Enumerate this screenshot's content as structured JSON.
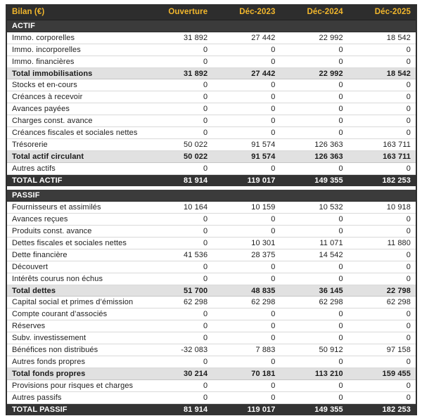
{
  "table": {
    "title": "Bilan (€)",
    "columns": [
      "Ouverture",
      "Déc-2023",
      "Déc-2024",
      "Déc-2025"
    ],
    "sections": [
      {
        "name": "ACTIF",
        "rows": [
          {
            "label": "Immo. corporelles",
            "values": [
              "31 892",
              "27 442",
              "22 992",
              "18 542"
            ],
            "style": "normal"
          },
          {
            "label": "Immo. incorporelles",
            "values": [
              "0",
              "0",
              "0",
              "0"
            ],
            "style": "normal"
          },
          {
            "label": "Immo. financières",
            "values": [
              "0",
              "0",
              "0",
              "0"
            ],
            "style": "normal"
          },
          {
            "label": "Total immobilisations",
            "values": [
              "31 892",
              "27 442",
              "22 992",
              "18 542"
            ],
            "style": "subtotal"
          },
          {
            "label": "Stocks et en-cours",
            "values": [
              "0",
              "0",
              "0",
              "0"
            ],
            "style": "normal"
          },
          {
            "label": "Créances à recevoir",
            "values": [
              "0",
              "0",
              "0",
              "0"
            ],
            "style": "normal"
          },
          {
            "label": "Avances payées",
            "values": [
              "0",
              "0",
              "0",
              "0"
            ],
            "style": "normal"
          },
          {
            "label": "Charges const. avance",
            "values": [
              "0",
              "0",
              "0",
              "0"
            ],
            "style": "normal"
          },
          {
            "label": "Créances fiscales et sociales nettes",
            "values": [
              "0",
              "0",
              "0",
              "0"
            ],
            "style": "normal"
          },
          {
            "label": "Trésorerie",
            "values": [
              "50 022",
              "91 574",
              "126 363",
              "163 711"
            ],
            "style": "normal"
          },
          {
            "label": "Total actif circulant",
            "values": [
              "50 022",
              "91 574",
              "126 363",
              "163 711"
            ],
            "style": "subtotal"
          },
          {
            "label": "Autres actifs",
            "values": [
              "0",
              "0",
              "0",
              "0"
            ],
            "style": "normal"
          },
          {
            "label": "TOTAL ACTIF",
            "values": [
              "81 914",
              "119 017",
              "149 355",
              "182 253"
            ],
            "style": "grand-total"
          }
        ]
      },
      {
        "name": "PASSIF",
        "rows": [
          {
            "label": "Fournisseurs et assimilés",
            "values": [
              "10 164",
              "10 159",
              "10 532",
              "10 918"
            ],
            "style": "normal"
          },
          {
            "label": "Avances reçues",
            "values": [
              "0",
              "0",
              "0",
              "0"
            ],
            "style": "normal"
          },
          {
            "label": "Produits const. avance",
            "values": [
              "0",
              "0",
              "0",
              "0"
            ],
            "style": "normal"
          },
          {
            "label": "Dettes fiscales et sociales nettes",
            "values": [
              "0",
              "10 301",
              "11 071",
              "11 880"
            ],
            "style": "normal"
          },
          {
            "label": "Dette financière",
            "values": [
              "41 536",
              "28 375",
              "14 542",
              "0"
            ],
            "style": "normal"
          },
          {
            "label": "Découvert",
            "values": [
              "0",
              "0",
              "0",
              "0"
            ],
            "style": "normal"
          },
          {
            "label": "Intérêts courus non échus",
            "values": [
              "0",
              "0",
              "0",
              "0"
            ],
            "style": "normal"
          },
          {
            "label": "Total dettes",
            "values": [
              "51 700",
              "48 835",
              "36 145",
              "22 798"
            ],
            "style": "subtotal"
          },
          {
            "label": "Capital social et primes d’émission",
            "values": [
              "62 298",
              "62 298",
              "62 298",
              "62 298"
            ],
            "style": "normal"
          },
          {
            "label": "Compte courant d’associés",
            "values": [
              "0",
              "0",
              "0",
              "0"
            ],
            "style": "normal"
          },
          {
            "label": "Réserves",
            "values": [
              "0",
              "0",
              "0",
              "0"
            ],
            "style": "normal"
          },
          {
            "label": "Subv. investissement",
            "values": [
              "0",
              "0",
              "0",
              "0"
            ],
            "style": "normal"
          },
          {
            "label": "Bénéfices non distribués",
            "values": [
              "-32 083",
              "7 883",
              "50 912",
              "97 158"
            ],
            "style": "normal"
          },
          {
            "label": "Autres fonds propres",
            "values": [
              "0",
              "0",
              "0",
              "0"
            ],
            "style": "normal"
          },
          {
            "label": "Total fonds propres",
            "values": [
              "30 214",
              "70 181",
              "113 210",
              "159 455"
            ],
            "style": "subtotal"
          },
          {
            "label": "Provisions pour risques et charges",
            "values": [
              "0",
              "0",
              "0",
              "0"
            ],
            "style": "normal"
          },
          {
            "label": "Autres passifs",
            "values": [
              "0",
              "0",
              "0",
              "0"
            ],
            "style": "normal"
          },
          {
            "label": "TOTAL PASSIF",
            "values": [
              "81 914",
              "119 017",
              "149 355",
              "182 253"
            ],
            "style": "grand-total"
          }
        ]
      }
    ]
  },
  "colors": {
    "accent_yellow": "#f2b72c",
    "header_bg": "#2d2d2d",
    "section_bg": "#3b3b3b",
    "grand_total_bg": "#333333",
    "subtotal_bg": "#e1e1e1",
    "border_dark": "#2e2e2e",
    "row_separator": "#d9d9d9"
  }
}
